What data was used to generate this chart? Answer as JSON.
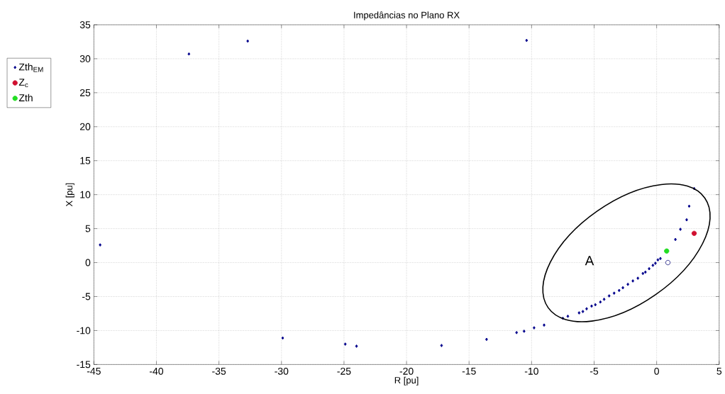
{
  "chart_data": {
    "type": "scatter",
    "title": "Impedâncias no Plano RX",
    "xlabel": "R [pu]",
    "ylabel": "X [pu]",
    "xlim": [
      -45,
      5
    ],
    "ylim": [
      -15,
      35
    ],
    "xticks": [
      -45,
      -40,
      -35,
      -30,
      -25,
      -20,
      -15,
      -10,
      -5,
      0,
      5
    ],
    "yticks": [
      -15,
      -10,
      -5,
      0,
      5,
      10,
      15,
      20,
      25,
      30,
      35
    ],
    "grid": true,
    "legend": "left",
    "annotations": [
      "A"
    ],
    "series": [
      {
        "name": "Zth$_{EM}$",
        "color": "#00008b",
        "marker": "diamond",
        "x": [
          -44.5,
          -37.4,
          -32.7,
          -10.4,
          -29.9,
          -24.9,
          -24.0,
          -17.2,
          -13.6,
          -11.2,
          -10.6,
          -9.8,
          -9.0,
          -7.5,
          -7.1,
          -6.2,
          -5.9,
          -5.6,
          -5.2,
          -4.9,
          -4.5,
          -4.2,
          -3.8,
          -3.4,
          -3.0,
          -2.7,
          -2.3,
          -1.9,
          -1.5,
          -1.1,
          -0.9,
          -0.6,
          -0.3,
          -0.1,
          0.1,
          0.3,
          1.5,
          1.9,
          2.4,
          2.6,
          3.0
        ],
        "values": [
          2.6,
          30.7,
          32.6,
          32.7,
          -11.1,
          -12.0,
          -12.3,
          -12.2,
          -11.3,
          -10.3,
          -10.1,
          -9.6,
          -9.2,
          -8.2,
          -7.9,
          -7.4,
          -7.2,
          -6.8,
          -6.4,
          -6.2,
          -5.8,
          -5.4,
          -4.9,
          -4.5,
          -4.1,
          -3.7,
          -3.2,
          -2.7,
          -2.3,
          -1.6,
          -1.4,
          -0.9,
          -0.4,
          -0.1,
          0.4,
          0.6,
          3.4,
          4.9,
          6.3,
          8.3,
          10.9
        ]
      },
      {
        "name": "Z$_{c}$",
        "color": "#d01030",
        "marker": "circle",
        "x": [
          3.0
        ],
        "values": [
          4.3
        ]
      },
      {
        "name": "Zth",
        "color": "#22dd22",
        "marker": "circle",
        "x": [
          0.8
        ],
        "values": [
          1.7
        ]
      },
      {
        "color": "#1a1a80",
        "marker": "circle",
        "x": [
          0.9
        ],
        "values": [
          0.0
        ]
      }
    ]
  }
}
